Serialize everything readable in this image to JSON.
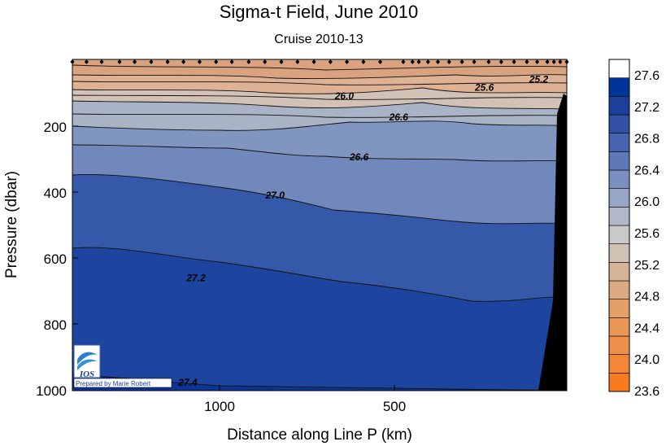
{
  "chart_data": {
    "type": "contour",
    "title": "Sigma-t Field,  June 2010",
    "subtitle": "Cruise 2010-13",
    "xlabel": "Distance along Line P  (km)",
    "ylabel": "Pressure  (dbar)",
    "x_ticks": [
      "1000",
      "500"
    ],
    "y_ticks": [
      "200",
      "400",
      "600",
      "800",
      "1000"
    ],
    "xlim": [
      1500,
      0
    ],
    "ylim": [
      0,
      1000
    ],
    "x_inverted": true,
    "y_inverted": true,
    "colorbar": {
      "levels": [
        23.6,
        24.0,
        24.4,
        24.8,
        25.2,
        25.6,
        26.0,
        26.4,
        26.8,
        27.2,
        27.6
      ],
      "tick_labels": [
        "23.6",
        "24.0",
        "24.4",
        "24.8",
        "25.2",
        "25.6",
        "26.0",
        "26.4",
        "26.8",
        "27.2",
        "27.6"
      ],
      "colors": [
        "#f97b1e",
        "#f38638",
        "#ee8f4a",
        "#e99857",
        "#e3a069",
        "#dcaa80",
        "#d5b59a",
        "#cfc1b4",
        "#c9c9c9",
        "#b1b8c8",
        "#97a6c4",
        "#7b8fc0",
        "#5e78b7",
        "#4564ad",
        "#3051a4",
        "#1c3f9a",
        "#003399",
        "#ffffff"
      ]
    },
    "contour_labels": [
      {
        "text": "25.2",
        "x": 85,
        "y": 60
      },
      {
        "text": "25.6",
        "x": 250,
        "y": 85
      },
      {
        "text": "26.0",
        "x": 675,
        "y": 110
      },
      {
        "text": "26.6",
        "x": 510,
        "y": 175
      },
      {
        "text": "26.6",
        "x": 630,
        "y": 295
      },
      {
        "text": "27.0",
        "x": 885,
        "y": 410
      },
      {
        "text": "27.2",
        "x": 1125,
        "y": 660
      },
      {
        "text": "27.4",
        "x": 1150,
        "y": 975
      }
    ],
    "station_marks": {
      "x": [
        1500,
        1457,
        1411,
        1357,
        1311,
        1261,
        1211,
        1163,
        1114,
        1064,
        1016,
        965,
        916,
        866,
        817,
        767,
        717,
        667,
        617,
        566,
        496,
        468,
        449,
        421,
        391,
        357,
        318,
        281,
        237,
        199,
        160,
        121,
        90,
        59,
        39,
        20,
        0
      ]
    },
    "logo": {
      "text": "IOS",
      "credit": "Prepared by Marie Robert"
    }
  }
}
